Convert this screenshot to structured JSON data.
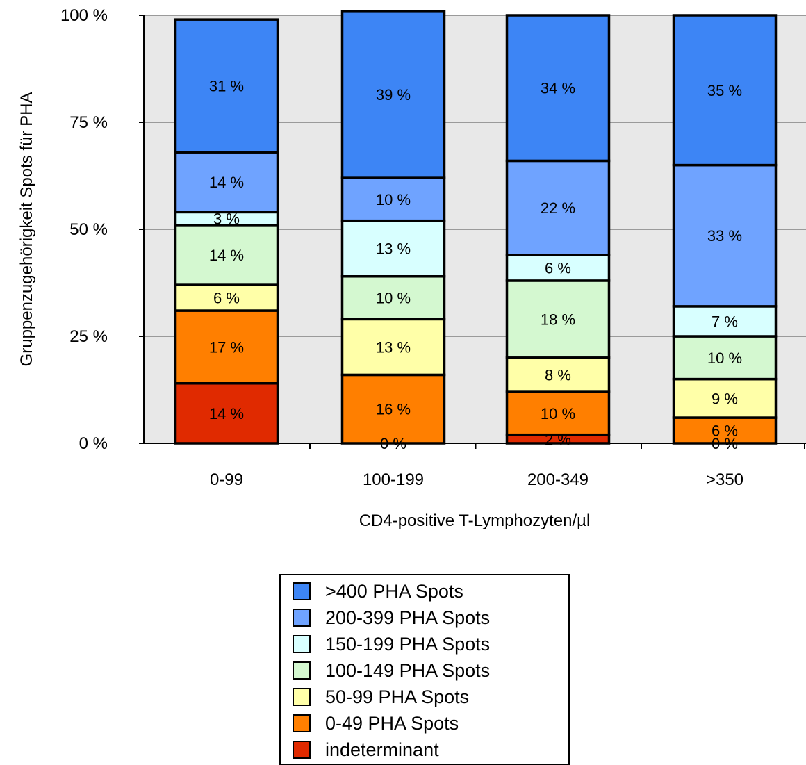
{
  "chart_data": {
    "type": "bar",
    "stacked": true,
    "percent_stacked": true,
    "categories": [
      "0-99",
      "100-199",
      "200-349",
      ">350"
    ],
    "series": [
      {
        "name": "indeterminant",
        "values": [
          14,
          0,
          2,
          0
        ],
        "color": "#e02a00"
      },
      {
        "name": "0-49 PHA Spots",
        "values": [
          17,
          16,
          10,
          6
        ],
        "color": "#ff7f00"
      },
      {
        "name": "50-99 PHA Spots",
        "values": [
          6,
          13,
          8,
          9
        ],
        "color": "#ffffa8"
      },
      {
        "name": "100-149 PHA Spots",
        "values": [
          14,
          10,
          18,
          10
        ],
        "color": "#d4f8d0"
      },
      {
        "name": "150-199 PHA Spots",
        "values": [
          3,
          13,
          6,
          7
        ],
        "color": "#d8ffff"
      },
      {
        "name": "200-399 PHA Spots",
        "values": [
          14,
          10,
          22,
          33
        ],
        "color": "#6fa3ff"
      },
      {
        "name": ">400 PHA Spots",
        "values": [
          31,
          39,
          34,
          35
        ],
        "color": "#3d85f5"
      }
    ],
    "value_labels": [
      [
        "14 %",
        "0 %",
        "2 %",
        "0 %"
      ],
      [
        "17 %",
        "16 %",
        "10 %",
        "6 %"
      ],
      [
        "6 %",
        "13 %",
        "8 %",
        "9 %"
      ],
      [
        "14 %",
        "10 %",
        "18 %",
        "10 %"
      ],
      [
        "3 %",
        "13 %",
        "6 %",
        "7 %"
      ],
      [
        "14 %",
        "10 %",
        "22 %",
        "33 %"
      ],
      [
        "31 %",
        "39 %",
        "34 %",
        "35 %"
      ]
    ],
    "y_ticks": [
      "0 %",
      "25 %",
      "50 %",
      "75 %",
      "100 %"
    ],
    "ylim": [
      0,
      100
    ],
    "xlabel": "CD4-positive T-Lymphozyten/µl",
    "ylabel": "Gruppenzugehörigkeit Spots für PHA",
    "grid": true,
    "plot_background": "#e8e8e8",
    "legend_position": "bottom-center",
    "legend_order": [
      ">400 PHA Spots",
      "200-399 PHA Spots",
      "150-199 PHA Spots",
      "100-149 PHA Spots",
      "50-99 PHA Spots",
      "0-49 PHA Spots",
      "indeterminant"
    ]
  }
}
